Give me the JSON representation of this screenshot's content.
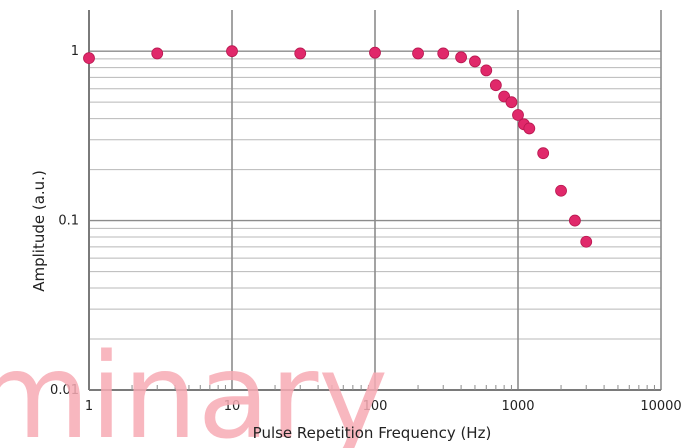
{
  "chart_data": {
    "type": "scatter",
    "title": "",
    "xlabel": "Pulse Repetition Frequency (Hz)",
    "ylabel": "Amplitude (a.u.)",
    "x_scale": "log",
    "y_scale": "log",
    "xlim": [
      1,
      10000
    ],
    "ylim": [
      0.01,
      1.75
    ],
    "grid": true,
    "legend": "none",
    "x_ticks": [
      1,
      10,
      100,
      1000,
      10000
    ],
    "x_tick_labels": [
      "1",
      "10",
      "100",
      "1000",
      "10000"
    ],
    "y_ticks": [
      0.01,
      0.1,
      1
    ],
    "y_tick_labels": [
      "0.01",
      "0.1",
      "1"
    ],
    "series": [
      {
        "color": "#e0286a",
        "points": [
          {
            "x": 1,
            "y": 0.91
          },
          {
            "x": 3,
            "y": 0.97
          },
          {
            "x": 10,
            "y": 1.0
          },
          {
            "x": 30,
            "y": 0.97
          },
          {
            "x": 100,
            "y": 0.98
          },
          {
            "x": 200,
            "y": 0.97
          },
          {
            "x": 300,
            "y": 0.97
          },
          {
            "x": 400,
            "y": 0.92
          },
          {
            "x": 500,
            "y": 0.87
          },
          {
            "x": 600,
            "y": 0.77
          },
          {
            "x": 700,
            "y": 0.63
          },
          {
            "x": 800,
            "y": 0.54
          },
          {
            "x": 900,
            "y": 0.5
          },
          {
            "x": 1000,
            "y": 0.42
          },
          {
            "x": 1100,
            "y": 0.37
          },
          {
            "x": 1200,
            "y": 0.35
          },
          {
            "x": 1500,
            "y": 0.25
          },
          {
            "x": 2000,
            "y": 0.15
          },
          {
            "x": 2500,
            "y": 0.1
          },
          {
            "x": 3000,
            "y": 0.075
          }
        ]
      }
    ]
  },
  "watermark": {
    "text": "minary",
    "color": "#f7aab4"
  }
}
